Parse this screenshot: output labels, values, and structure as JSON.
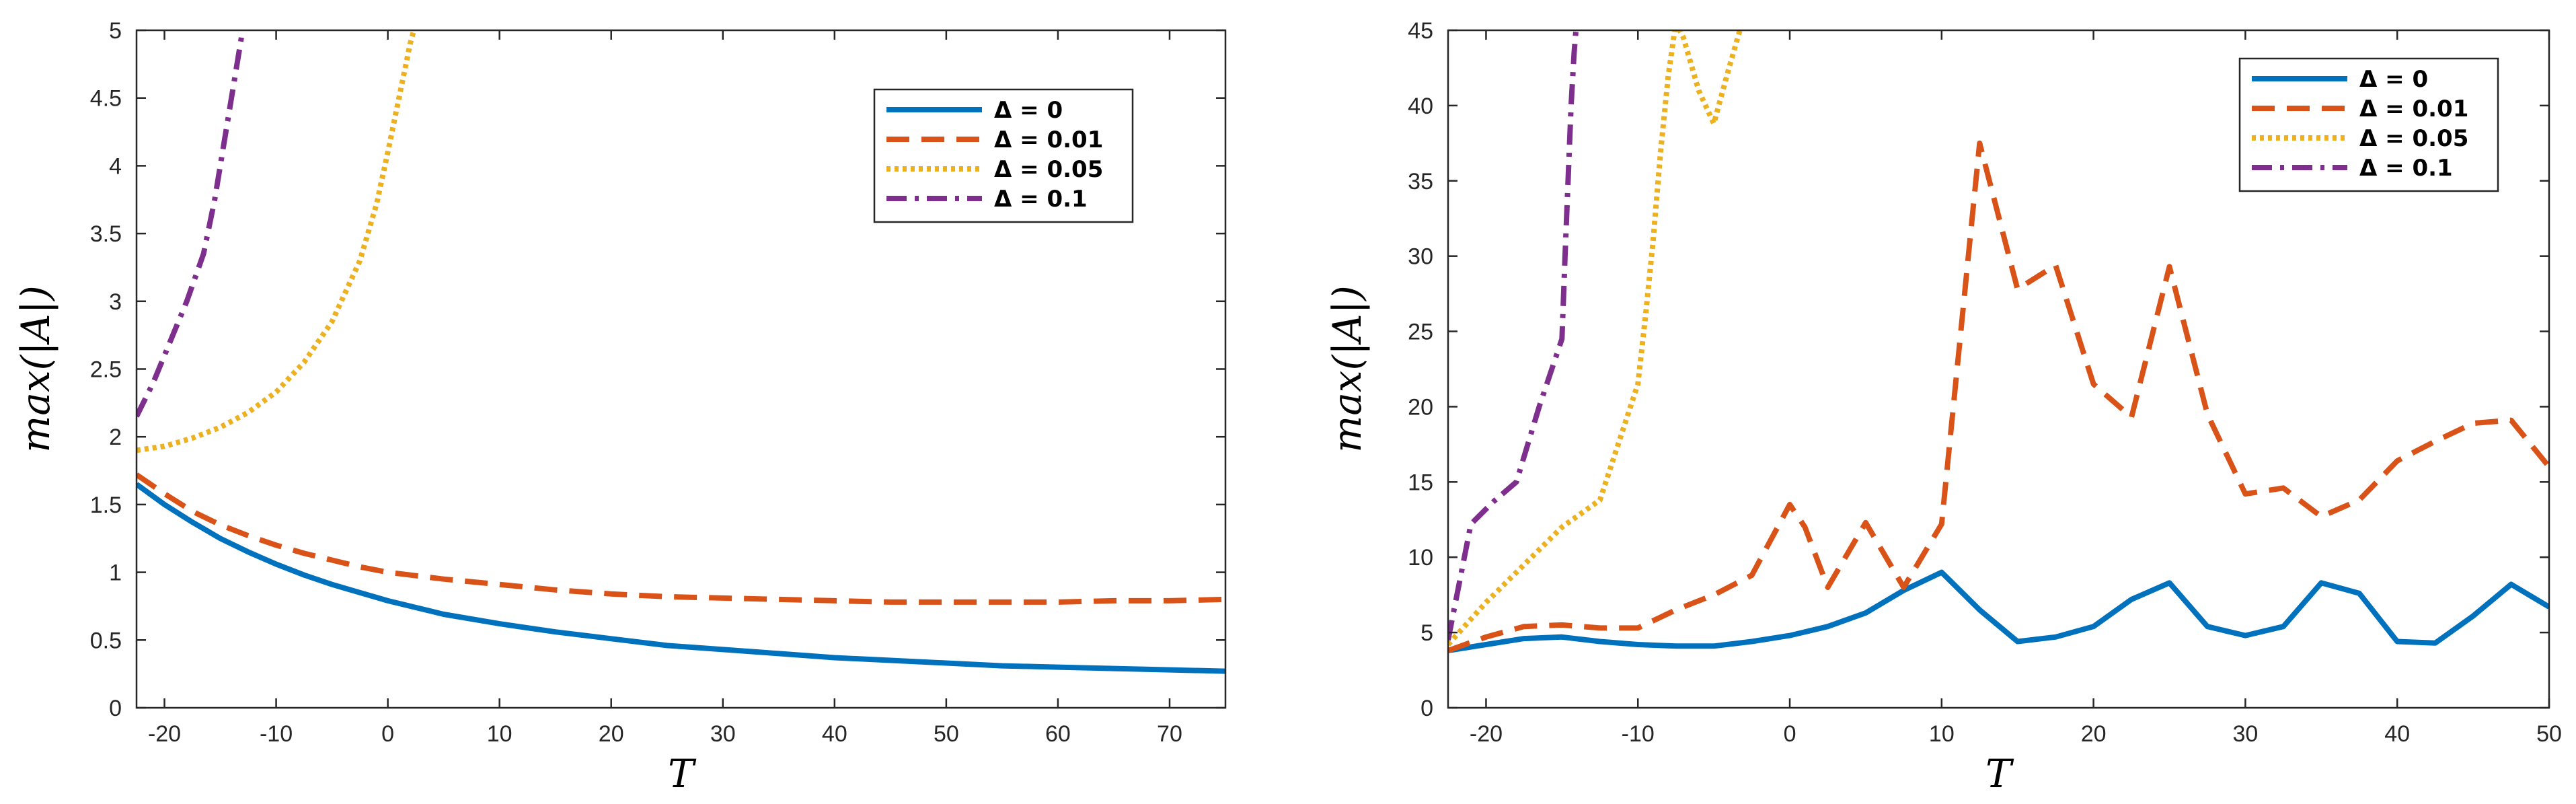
{
  "chart_data": [
    {
      "type": "line",
      "xlabel": "T",
      "ylabel": "max(|A|)",
      "xlim": [
        -22.5,
        75
      ],
      "ylim": [
        0,
        5
      ],
      "xticks": [
        -20,
        -10,
        0,
        10,
        20,
        30,
        40,
        50,
        60,
        70
      ],
      "yticks": [
        0,
        0.5,
        1,
        1.5,
        2,
        2.5,
        3,
        3.5,
        4,
        4.5,
        5
      ],
      "legend_position": "top-right",
      "series": [
        {
          "name": "Δ = 0",
          "color": "#0072BD",
          "style": "solid",
          "x": [
            -22.5,
            -20,
            -17.5,
            -15,
            -12.5,
            -10,
            -7.5,
            -5,
            -2.5,
            0,
            5,
            10,
            15,
            20,
            25,
            30,
            35,
            40,
            45,
            50,
            55,
            60,
            65,
            70,
            75
          ],
          "y": [
            1.65,
            1.5,
            1.37,
            1.25,
            1.15,
            1.06,
            0.98,
            0.91,
            0.85,
            0.79,
            0.69,
            0.62,
            0.56,
            0.51,
            0.46,
            0.43,
            0.4,
            0.37,
            0.35,
            0.33,
            0.31,
            0.3,
            0.29,
            0.28,
            0.27
          ]
        },
        {
          "name": "Δ = 0.01",
          "color": "#D95319",
          "style": "dashed",
          "x": [
            -22.5,
            -20,
            -17.5,
            -15,
            -12.5,
            -10,
            -7.5,
            -5,
            -2.5,
            0,
            5,
            10,
            15,
            20,
            25,
            30,
            35,
            40,
            45,
            50,
            55,
            60,
            65,
            70,
            75
          ],
          "y": [
            1.72,
            1.58,
            1.45,
            1.35,
            1.27,
            1.2,
            1.14,
            1.09,
            1.04,
            1.0,
            0.95,
            0.91,
            0.87,
            0.84,
            0.82,
            0.81,
            0.8,
            0.79,
            0.78,
            0.78,
            0.78,
            0.78,
            0.79,
            0.79,
            0.8
          ]
        },
        {
          "name": "Δ = 0.05",
          "color": "#EDB120",
          "style": "dotted",
          "x": [
            -22.5,
            -20,
            -17.5,
            -15,
            -12.5,
            -10,
            -7.5,
            -5,
            -2.5,
            -1,
            0,
            1,
            2,
            3
          ],
          "y": [
            1.9,
            1.93,
            1.99,
            2.07,
            2.18,
            2.33,
            2.55,
            2.85,
            3.3,
            3.72,
            4.1,
            4.5,
            4.9,
            5.2
          ]
        },
        {
          "name": "Δ = 0.1",
          "color": "#7E2F8E",
          "style": "dashdot",
          "x": [
            -22.5,
            -21,
            -19.5,
            -18,
            -16.5,
            -15.5,
            -15,
            -14,
            -13,
            -12.5
          ],
          "y": [
            2.15,
            2.4,
            2.7,
            3.0,
            3.35,
            3.75,
            4.0,
            4.5,
            5.0,
            5.2
          ]
        }
      ]
    },
    {
      "type": "line",
      "xlabel": "T",
      "ylabel": "max(|A|)",
      "xlim": [
        -22.5,
        50
      ],
      "ylim": [
        0,
        45
      ],
      "xticks": [
        -20,
        -10,
        0,
        10,
        20,
        30,
        40,
        50
      ],
      "yticks": [
        0,
        5,
        10,
        15,
        20,
        25,
        30,
        35,
        40,
        45
      ],
      "legend_position": "top-right",
      "series": [
        {
          "name": "Δ = 0",
          "color": "#0072BD",
          "style": "solid",
          "x": [
            -22.5,
            -20,
            -17.5,
            -15,
            -12.5,
            -10,
            -7.5,
            -5,
            -2.5,
            0,
            2.5,
            5,
            7.5,
            10,
            12.5,
            15,
            17.5,
            20,
            22.5,
            25,
            27.5,
            30,
            32.5,
            35,
            37.5,
            40,
            42.5,
            45,
            47.5,
            50
          ],
          "y": [
            3.8,
            4.2,
            4.6,
            4.7,
            4.4,
            4.2,
            4.1,
            4.1,
            4.4,
            4.8,
            5.4,
            6.3,
            7.8,
            9.0,
            6.5,
            4.4,
            4.7,
            5.4,
            7.2,
            8.3,
            5.4,
            4.8,
            5.4,
            8.3,
            7.6,
            4.4,
            4.3,
            6.1,
            8.2,
            6.7
          ]
        },
        {
          "name": "Δ = 0.01",
          "color": "#D95319",
          "style": "dashed",
          "x": [
            -22.5,
            -20,
            -17.5,
            -15,
            -12.5,
            -10,
            -7.5,
            -5,
            -2.5,
            0,
            1,
            2.5,
            5,
            7.5,
            10,
            12.5,
            15,
            17.5,
            20,
            22.5,
            25,
            27.5,
            30,
            32.5,
            35,
            37.5,
            40,
            42.5,
            45,
            47.5,
            50
          ],
          "y": [
            3.8,
            4.7,
            5.4,
            5.5,
            5.3,
            5.3,
            6.5,
            7.5,
            8.8,
            13.5,
            12.0,
            8.0,
            12.3,
            8.0,
            12.2,
            37.5,
            27.8,
            29.4,
            21.5,
            19.3,
            29.3,
            19.5,
            14.2,
            14.6,
            12.7,
            13.8,
            16.4,
            17.7,
            18.9,
            19.1,
            16.0
          ]
        },
        {
          "name": "Δ = 0.05",
          "color": "#EDB120",
          "style": "dotted",
          "x": [
            -22.5,
            -20,
            -17.5,
            -15,
            -12.5,
            -10,
            -9.5,
            -9,
            -8.5,
            -8,
            -7.5,
            -7,
            -6,
            -5,
            -4,
            -3
          ],
          "y": [
            4.2,
            7.0,
            9.5,
            12.0,
            13.8,
            21.5,
            26.0,
            31.0,
            37.0,
            42.0,
            45.5,
            44.5,
            41.0,
            38.8,
            42.5,
            46.0
          ]
        },
        {
          "name": "Δ = 0.1",
          "color": "#7E2F8E",
          "style": "dashdot",
          "x": [
            -22.5,
            -21,
            -19.5,
            -18,
            -16.5,
            -15,
            -14.8,
            -14.6,
            -14.4,
            -14.2,
            -14
          ],
          "y": [
            4.5,
            12.2,
            13.7,
            15.0,
            20.0,
            24.5,
            30.0,
            35.0,
            40.0,
            43.5,
            46.0
          ]
        }
      ]
    }
  ]
}
